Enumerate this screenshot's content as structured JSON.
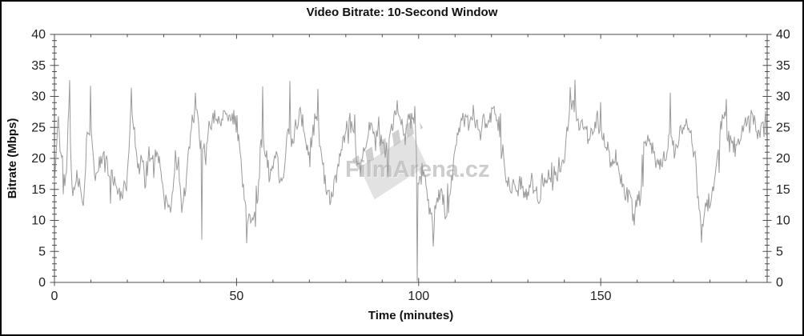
{
  "title": "Video Bitrate: 10-Second Window",
  "watermark": {
    "text": "FilmArena.cz",
    "logo": "clapperboard"
  },
  "chart_data": {
    "type": "line",
    "title": "Video Bitrate: 10-Second Window",
    "xlabel": "Time (minutes)",
    "ylabel": "Bitrate (Mbps)",
    "xlim": [
      0,
      195.7
    ],
    "ylim": [
      0,
      40
    ],
    "grid": false,
    "legend": "none",
    "x_major_tick_step": 50,
    "x_minor_tick_step": 10,
    "x_major_labels": [
      "0",
      "50",
      "100",
      "150"
    ],
    "y_major_tick_step": 5,
    "y_minor_tick_step": 1,
    "y_major_labels": [
      "0",
      "5",
      "10",
      "15",
      "20",
      "25",
      "30",
      "35",
      "40"
    ],
    "y_axis_right_mirrored": true,
    "line_color": "#9a9a9a",
    "axis_color": "#4d4d4d",
    "label_color": "#222222",
    "series_name": "video-bitrate-mbps-10s-window",
    "anchors_t_step_minutes": 1,
    "anchors_mbps": [
      16,
      27,
      21,
      15,
      28,
      13,
      17,
      15,
      12.5,
      24,
      26,
      17,
      18.5,
      20,
      19.5,
      17,
      17.5,
      15.5,
      15,
      14.5,
      17,
      28,
      23,
      18,
      20,
      17,
      21,
      19.5,
      21,
      18.5,
      14,
      12.5,
      11.5,
      18.5,
      19,
      12,
      15.5,
      20.5,
      27,
      28.5,
      22,
      22,
      23.5,
      25,
      26,
      25.5,
      26.5,
      27,
      27.5,
      26.5,
      25,
      21,
      13.5,
      10.5,
      11,
      10.5,
      14,
      24,
      20,
      17,
      19,
      21,
      14.5,
      17,
      26,
      22,
      24,
      27.5,
      26.5,
      22,
      20,
      24,
      27,
      22,
      18,
      14,
      13,
      15.5,
      20,
      22,
      24,
      26.5,
      25,
      20,
      18.5,
      21,
      24,
      26,
      22,
      25,
      23,
      20.5,
      24,
      26.5,
      28.5,
      26,
      24,
      26,
      25.5,
      26.5,
      15,
      18,
      16,
      12,
      9,
      13.5,
      15,
      12,
      11,
      16,
      22,
      25,
      26,
      27,
      25,
      27.5,
      26,
      24,
      26.5,
      25,
      27,
      27.5,
      25,
      20,
      17,
      15.5,
      16,
      15,
      16.5,
      15,
      14.5,
      16,
      15.5,
      13.5,
      16,
      17,
      16.5,
      18,
      17.5,
      18,
      20,
      26,
      29,
      28,
      25,
      27,
      24,
      22.5,
      25,
      26.5,
      24,
      22,
      21,
      19,
      20,
      18,
      16,
      14.5,
      14,
      11,
      13.5,
      14,
      23,
      24,
      22,
      20,
      18.5,
      19,
      20.5,
      25.5,
      21,
      22,
      25,
      24,
      26,
      23,
      20,
      12,
      9.5,
      14,
      13,
      15.5,
      20,
      25,
      27.5,
      24,
      22,
      23,
      21.5,
      24,
      26.5,
      25,
      27.5,
      24,
      25,
      25
    ],
    "spikes": [
      {
        "t": 4.2,
        "v": 32.6
      },
      {
        "t": 9.9,
        "v": 31.7
      },
      {
        "t": 21.2,
        "v": 31.4
      },
      {
        "t": 38.8,
        "v": 30.6
      },
      {
        "t": 40.4,
        "v": 6.9
      },
      {
        "t": 52.9,
        "v": 9.4
      },
      {
        "t": 57.2,
        "v": 31.6
      },
      {
        "t": 64.6,
        "v": 32.5
      },
      {
        "t": 72.3,
        "v": 31.2
      },
      {
        "t": 99.6,
        "v": 0.2
      },
      {
        "t": 104.1,
        "v": 5.8
      },
      {
        "t": 141.5,
        "v": 31.5
      },
      {
        "t": 143.0,
        "v": 32.7
      },
      {
        "t": 159.3,
        "v": 9.2
      },
      {
        "t": 169.2,
        "v": 30.6
      },
      {
        "t": 177.6,
        "v": 6.4
      },
      {
        "t": 184.4,
        "v": 29.6
      }
    ],
    "noise": {
      "seed": 42,
      "amp": 2.1,
      "burst_chance": 0.07,
      "burst_amp": 4.2
    }
  }
}
